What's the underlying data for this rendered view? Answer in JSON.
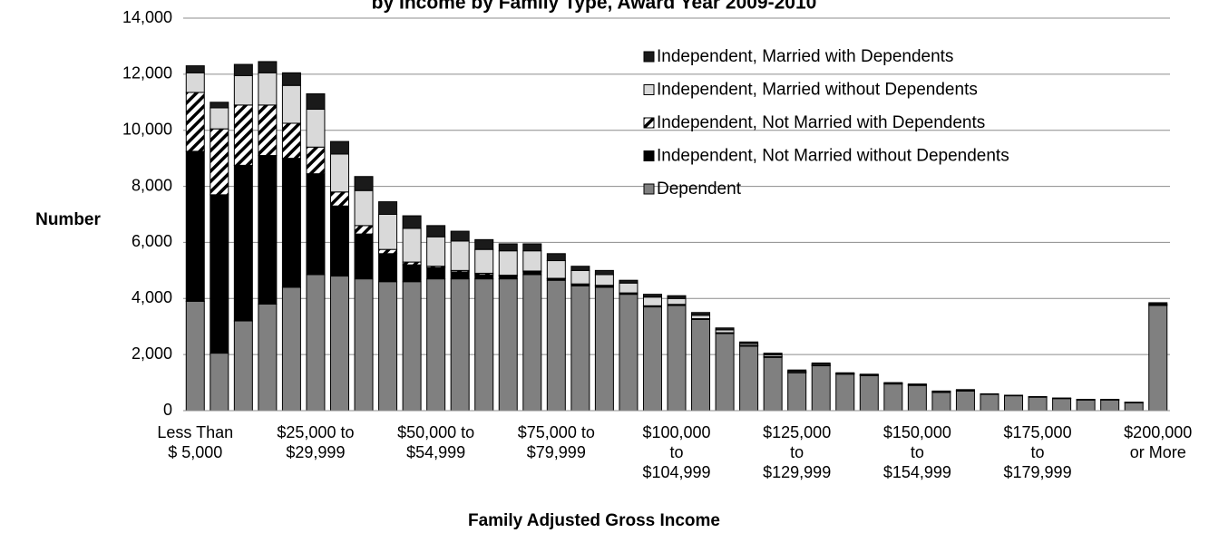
{
  "chart_data": {
    "type": "stacked_bar",
    "title": "by Income by Family Type, Award Year 2009-2010",
    "x_label": "Family Adjusted Gross Income",
    "y_label": "Number",
    "categories": [
      "Less Than\n$ 5,000",
      null,
      null,
      null,
      null,
      "$25,000 to\n$29,999",
      null,
      null,
      null,
      null,
      "$50,000 to\n$54,999",
      null,
      null,
      null,
      null,
      "$75,000 to\n$79,999",
      null,
      null,
      null,
      null,
      "$100,000\nto\n$104,999",
      null,
      null,
      null,
      null,
      "$125,000\nto\n$129,999",
      null,
      null,
      null,
      null,
      "$150,000\nto\n$154,999",
      null,
      null,
      null,
      null,
      "$175,000\nto\n$179,999",
      null,
      null,
      null,
      null,
      "$200,000\nor More"
    ],
    "series": [
      {
        "name": "Dependent",
        "color": "#808080",
        "values": [
          3900,
          2050,
          3200,
          3800,
          4400,
          4850,
          4800,
          4700,
          4600,
          4600,
          4700,
          4700,
          4700,
          4700,
          4850,
          4650,
          4450,
          4400,
          4150,
          3700,
          3750,
          3250,
          2750,
          2300,
          1900,
          1350,
          1600,
          1300,
          1250,
          950,
          900,
          650,
          700,
          580,
          530,
          480,
          430,
          380,
          380,
          280,
          3750
        ]
      },
      {
        "name": "Independent, Not Married without Dependents",
        "color": "#000000",
        "values": [
          5350,
          5650,
          5550,
          5300,
          4600,
          3600,
          2500,
          1600,
          1000,
          600,
          400,
          250,
          150,
          100,
          100,
          50,
          50,
          50,
          30,
          30,
          30,
          20,
          20,
          20,
          20,
          10,
          10,
          10,
          10,
          10,
          10,
          10,
          10,
          5,
          5,
          5,
          5,
          5,
          5,
          5,
          20
        ]
      },
      {
        "name": "Independent, Not Married with Dependents",
        "color": "#ffffff",
        "pattern": "hatch",
        "values": [
          2100,
          2350,
          2150,
          1800,
          1250,
          950,
          500,
          300,
          150,
          100,
          50,
          50,
          50,
          30,
          30,
          20,
          20,
          20,
          20,
          10,
          10,
          10,
          10,
          10,
          10,
          10,
          10,
          0,
          0,
          0,
          0,
          0,
          0,
          0,
          0,
          0,
          0,
          0,
          0,
          0,
          0
        ]
      },
      {
        "name": "Independent, Married without Dependents",
        "color": "#d9d9d9",
        "values": [
          700,
          750,
          1050,
          1150,
          1350,
          1350,
          1350,
          1250,
          1250,
          1200,
          1050,
          1050,
          850,
          870,
          720,
          630,
          480,
          380,
          350,
          310,
          210,
          120,
          100,
          60,
          60,
          40,
          40,
          20,
          20,
          20,
          20,
          20,
          20,
          10,
          10,
          10,
          10,
          10,
          10,
          10,
          30
        ]
      },
      {
        "name": "Independent, Married with Dependents",
        "color": "#1a1a1a",
        "values": [
          250,
          200,
          400,
          400,
          450,
          550,
          450,
          500,
          450,
          450,
          400,
          350,
          350,
          250,
          250,
          250,
          150,
          150,
          100,
          100,
          100,
          100,
          70,
          60,
          60,
          40,
          40,
          20,
          20,
          20,
          20,
          20,
          20,
          5,
          5,
          5,
          5,
          5,
          5,
          5,
          50
        ]
      }
    ],
    "ylim": [
      0,
      14000
    ],
    "yticks": [
      0,
      {
        "value": 2000,
        "label": "2,000"
      },
      {
        "value": 4000,
        "label": "4,000"
      },
      {
        "value": 6000,
        "label": "6,000"
      },
      {
        "value": 8000,
        "label": "8,000"
      },
      {
        "value": 10000,
        "label": "10,000"
      },
      {
        "value": 12000,
        "label": "12,000"
      },
      {
        "value": 14000,
        "label": "14,000"
      }
    ],
    "grid": true,
    "legend": "top-right"
  }
}
